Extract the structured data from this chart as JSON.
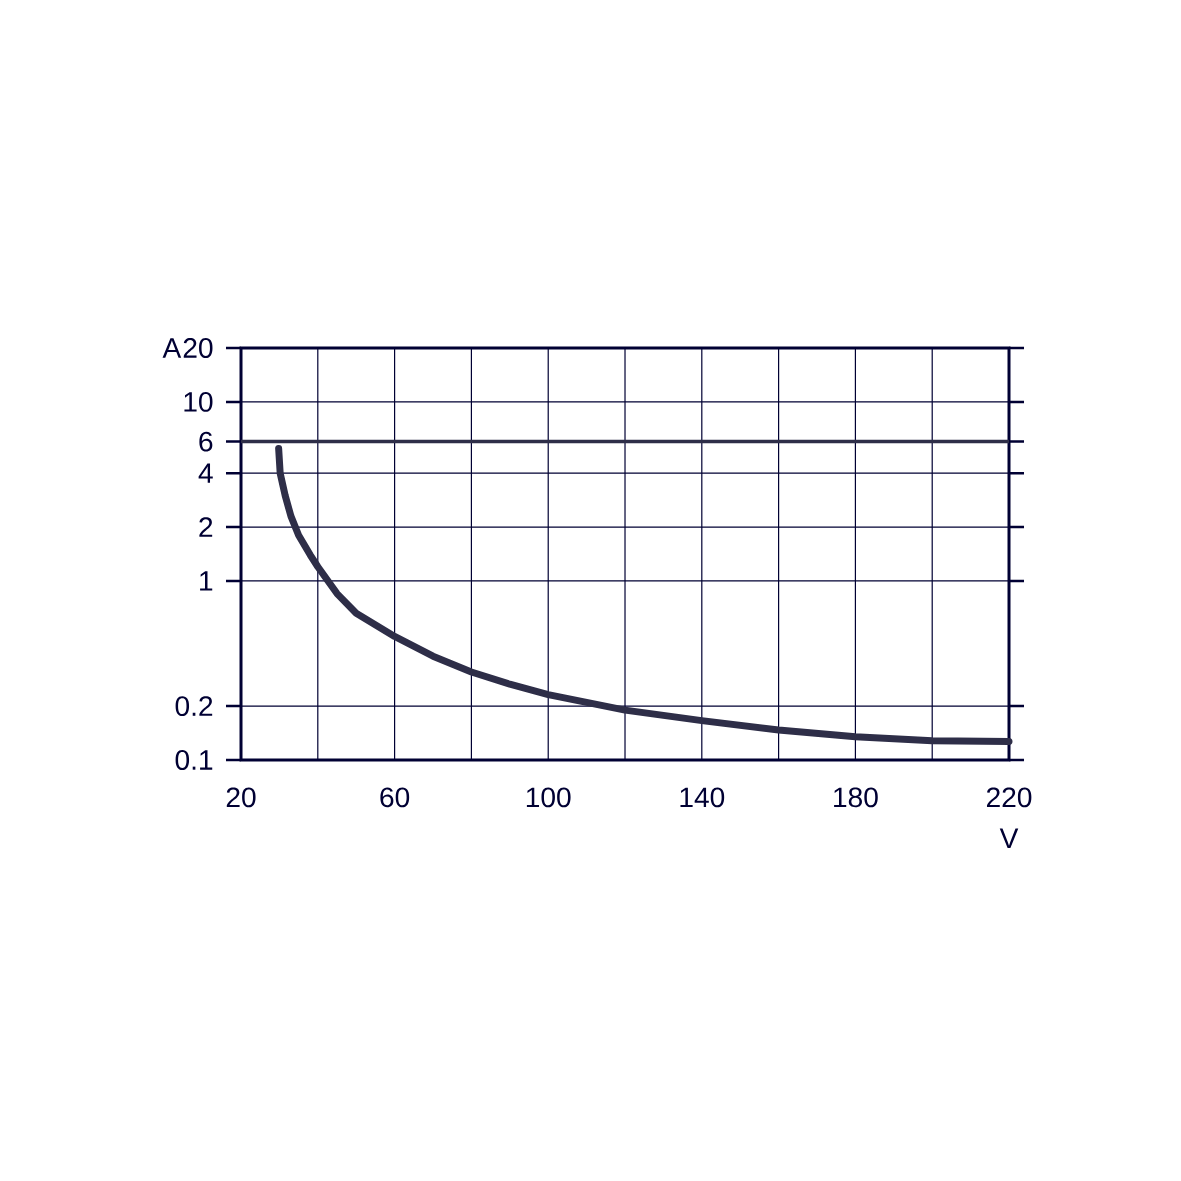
{
  "chart_data": {
    "type": "line",
    "xlabel": "V",
    "ylabel": "A",
    "log": "y",
    "xlim": [
      20,
      220
    ],
    "ylim": [
      0.1,
      20
    ],
    "xticks": [
      20,
      {
        "value": 40,
        "label": null
      },
      60,
      {
        "value": 80,
        "label": null
      },
      100,
      {
        "value": 120,
        "label": null
      },
      140,
      {
        "value": 160,
        "label": null
      },
      180,
      {
        "value": 200,
        "label": null
      },
      220
    ],
    "yticks": [
      0.1,
      0.2,
      1,
      2,
      4,
      6,
      10,
      20
    ],
    "grid": true,
    "line_style": "solid",
    "marker": "none",
    "ref_lines": [
      {
        "axis": "y",
        "value": 6,
        "color": "#2e2e48"
      }
    ],
    "series": [
      {
        "color": "#2e2e48",
        "x": [
          29.8,
          30.2,
          31.5,
          33,
          35,
          38,
          40,
          45,
          50,
          60,
          70,
          80,
          90,
          100,
          120,
          140,
          160,
          180,
          200,
          220
        ],
        "values": [
          5.5,
          4.0,
          3.0,
          2.3,
          1.8,
          1.4,
          1.2,
          0.85,
          0.66,
          0.49,
          0.38,
          0.31,
          0.265,
          0.232,
          0.19,
          0.166,
          0.147,
          0.135,
          0.128,
          0.127
        ]
      }
    ]
  }
}
